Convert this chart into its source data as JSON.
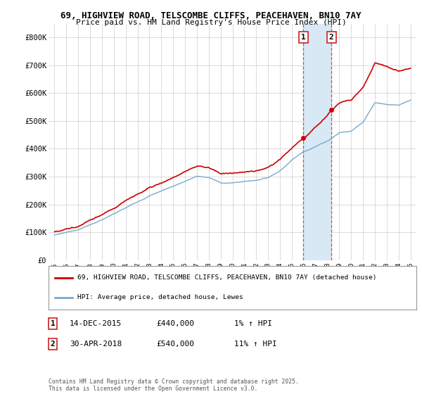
{
  "title_line1": "69, HIGHVIEW ROAD, TELSCOMBE CLIFFS, PEACEHAVEN, BN10 7AY",
  "title_line2": "Price paid vs. HM Land Registry's House Price Index (HPI)",
  "legend_line1": "69, HIGHVIEW ROAD, TELSCOMBE CLIFFS, PEACEHAVEN, BN10 7AY (detached house)",
  "legend_line2": "HPI: Average price, detached house, Lewes",
  "copyright": "Contains HM Land Registry data © Crown copyright and database right 2025.\nThis data is licensed under the Open Government Licence v3.0.",
  "transaction1_label": "1",
  "transaction1_date": "14-DEC-2015",
  "transaction1_price": "£440,000",
  "transaction1_hpi": "1% ↑ HPI",
  "transaction2_label": "2",
  "transaction2_date": "30-APR-2018",
  "transaction2_price": "£540,000",
  "transaction2_hpi": "11% ↑ HPI",
  "red_color": "#cc0000",
  "blue_color": "#7aaacc",
  "shaded_color": "#d8e8f5",
  "background_color": "#ffffff",
  "grid_color": "#cccccc",
  "ylim": [
    0,
    850000
  ],
  "yticks": [
    0,
    100000,
    200000,
    300000,
    400000,
    500000,
    600000,
    700000,
    800000
  ],
  "ytick_labels": [
    "£0",
    "£100K",
    "£200K",
    "£300K",
    "£400K",
    "£500K",
    "£600K",
    "£700K",
    "£800K"
  ],
  "xtick_years": [
    1995,
    1996,
    1997,
    1998,
    1999,
    2000,
    2001,
    2002,
    2003,
    2004,
    2005,
    2006,
    2007,
    2008,
    2009,
    2010,
    2011,
    2012,
    2013,
    2014,
    2015,
    2016,
    2017,
    2018,
    2019,
    2020,
    2021,
    2022,
    2023,
    2024,
    2025
  ],
  "transaction1_x": 2015.96,
  "transaction2_x": 2018.33,
  "transaction1_y": 440000,
  "transaction2_y": 540000
}
